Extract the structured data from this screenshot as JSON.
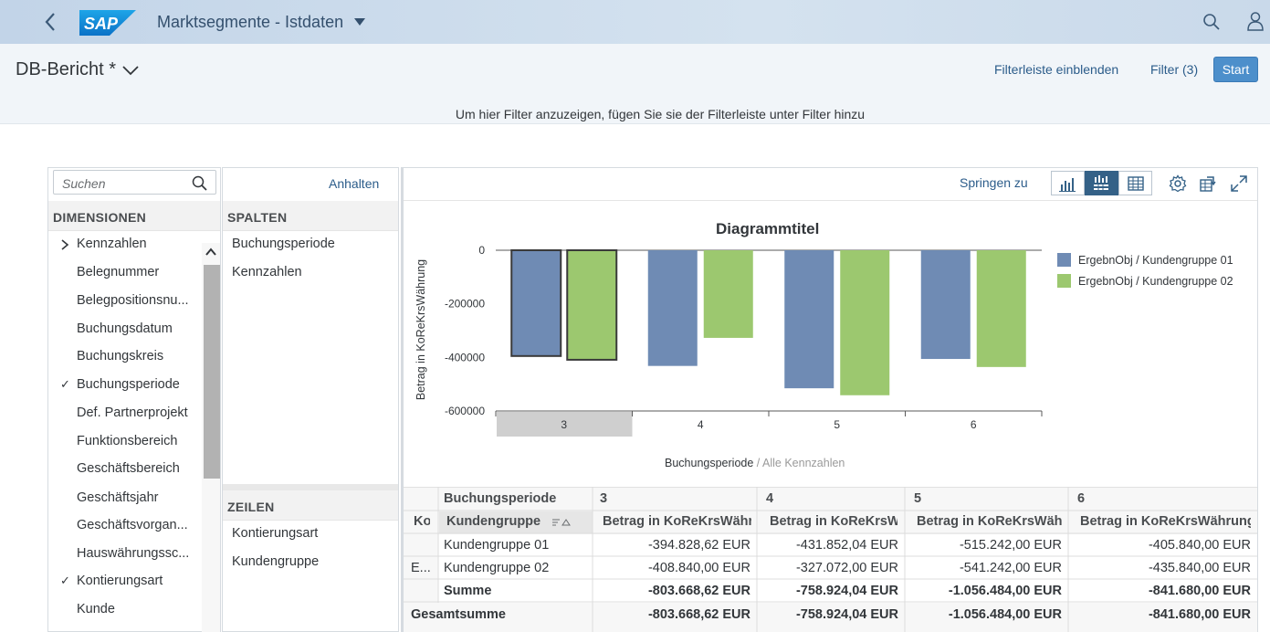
{
  "shell": {
    "logo_text": "SAP",
    "app_title": "Marktsegmente - Istdaten"
  },
  "header": {
    "variant": "DB-Bericht *",
    "show_filterbar": "Filterleiste einblenden",
    "filter": "Filter (3)",
    "start": "Start",
    "hint": "Um hier Filter anzuzeigen, fügen Sie sie der Filterleiste unter Filter hinzu"
  },
  "fields": {
    "search_placeholder": "Suchen",
    "dimensions_header": "DIMENSIONEN",
    "items": [
      {
        "label": "Kennzahlen",
        "expand": true,
        "checked": false
      },
      {
        "label": "Belegnummer",
        "checked": false
      },
      {
        "label": "Belegpositionsnu...",
        "checked": false
      },
      {
        "label": "Buchungsdatum",
        "checked": false
      },
      {
        "label": "Buchungskreis",
        "checked": false
      },
      {
        "label": "Buchungsperiode",
        "checked": true
      },
      {
        "label": "Def. Partnerprojekt",
        "checked": false
      },
      {
        "label": "Funktionsbereich",
        "checked": false
      },
      {
        "label": "Geschäftsbereich",
        "checked": false
      },
      {
        "label": "Geschäftsjahr",
        "checked": false
      },
      {
        "label": "Geschäftsvorgan...",
        "checked": false
      },
      {
        "label": "Hauswährungssc...",
        "checked": false
      },
      {
        "label": "Kontierungsart",
        "checked": true
      },
      {
        "label": "Kunde",
        "checked": false
      }
    ]
  },
  "layout": {
    "pause": "Anhalten",
    "columns_header": "SPALTEN",
    "columns": [
      "Buchungsperiode",
      "Kennzahlen"
    ],
    "rows_header": "ZEILEN",
    "rows": [
      "Kontierungsart",
      "Kundengruppe"
    ]
  },
  "toolbar": {
    "jump_to": "Springen zu",
    "icons": [
      "chart-icon",
      "chart-table-icon",
      "table-icon",
      "settings-icon",
      "export-icon",
      "fullscreen-icon"
    ]
  },
  "chart_data": {
    "type": "bar",
    "title": "Diagrammtitel",
    "ylabel": "Betrag in KoReKrsWährung",
    "xlabel": "Buchungsperiode",
    "xlabel_suffix": " / Alle Kennzahlen",
    "categories": [
      "3",
      "4",
      "5",
      "6"
    ],
    "ylim": [
      -600000,
      0
    ],
    "yticks": [
      "0",
      "-200000",
      "-400000",
      "-600000"
    ],
    "series": [
      {
        "name": "ErgebnObj / Kundengruppe 01",
        "color": "#6f8bb4",
        "values": [
          -394828.62,
          -431852.04,
          -515242.0,
          -405840.0
        ]
      },
      {
        "name": "ErgebnObj / Kundengruppe 02",
        "color": "#9cc86f",
        "values": [
          -408840.0,
          -327072.0,
          -541242.0,
          -435840.0
        ]
      }
    ],
    "selected_category": "3",
    "legend": "right"
  },
  "table": {
    "col_dim_header": "Buchungsperiode",
    "periods": [
      "3",
      "4",
      "5",
      "6"
    ],
    "row_dim1": "Ko",
    "row_dim2": "Kundengruppe",
    "measure": "Betrag in KoReKrsWährung",
    "group_label": "E...",
    "rows": [
      {
        "label": "Kundengruppe 01",
        "values": [
          "-394.828,62 EUR",
          "-431.852,04 EUR",
          "-515.242,00 EUR",
          "-405.840,00 EUR"
        ]
      },
      {
        "label": "Kundengruppe 02",
        "values": [
          "-408.840,00 EUR",
          "-327.072,00 EUR",
          "-541.242,00 EUR",
          "-435.840,00 EUR"
        ]
      },
      {
        "label": "Summe",
        "values": [
          "-803.668,62 EUR",
          "-758.924,04 EUR",
          "-1.056.484,00 EUR",
          "-841.680,00 EUR"
        ]
      }
    ],
    "total_label": "Gesamtsumme",
    "total_values": [
      "-803.668,62 EUR",
      "-758.924,04 EUR",
      "-1.056.484,00 EUR",
      "-841.680,00 EUR"
    ]
  }
}
